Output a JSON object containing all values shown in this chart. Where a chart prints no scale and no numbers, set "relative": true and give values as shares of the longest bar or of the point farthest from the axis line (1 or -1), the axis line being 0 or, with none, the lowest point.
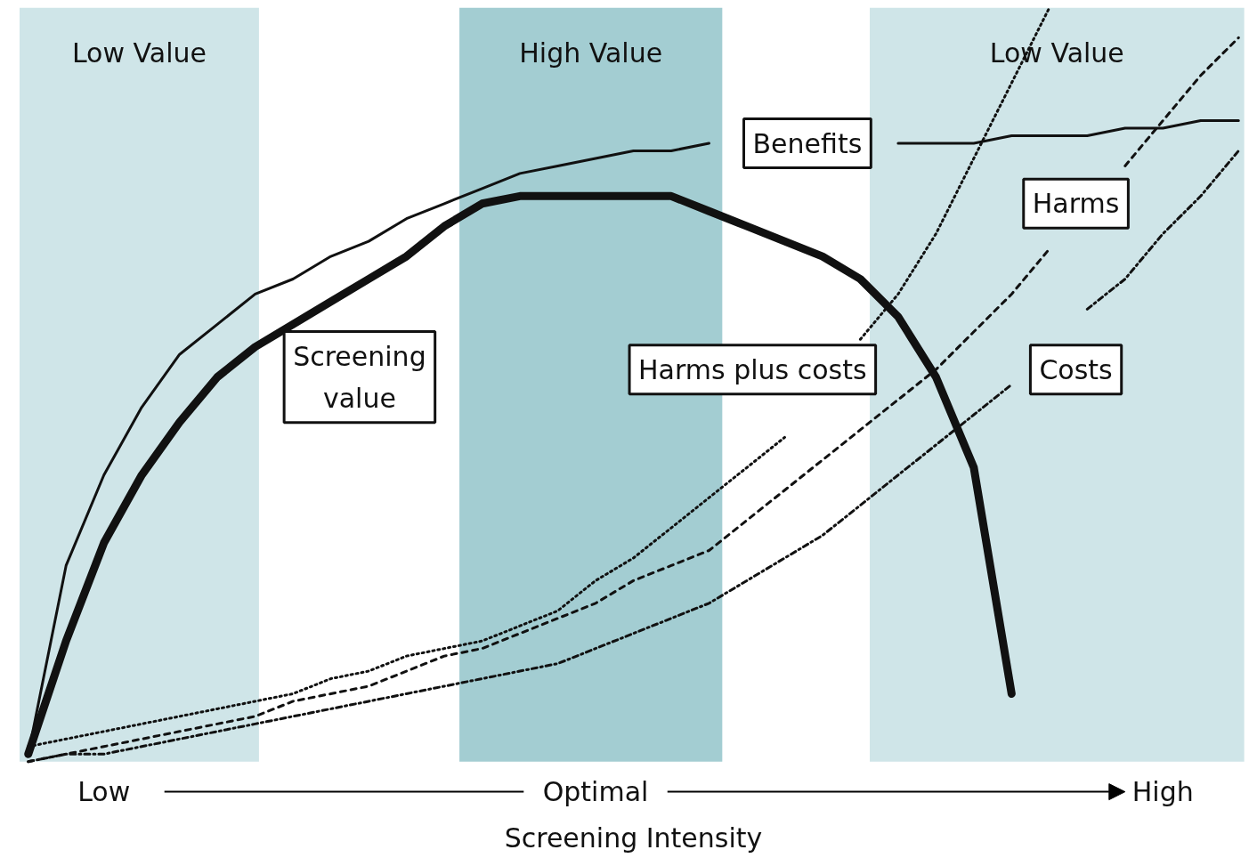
{
  "chart_data": {
    "type": "line",
    "relative": true,
    "xlabel": "Screening Intensity",
    "categories": [
      null,
      null,
      "Low",
      null,
      null,
      null,
      null,
      null,
      null,
      null,
      null,
      null,
      null,
      null,
      null,
      "Optimal",
      null,
      null,
      null,
      null,
      null,
      null,
      null,
      null,
      null,
      null,
      null,
      null,
      null,
      null,
      "High",
      null,
      null
    ],
    "grid": false,
    "annotations": [
      "Low Value",
      "High Value",
      "Low Value"
    ],
    "series": [
      {
        "name": "Benefits",
        "color": "#111111",
        "line_style": "solid",
        "values": [
          0.01,
          0.26,
          0.38,
          0.47,
          0.54,
          0.58,
          0.62,
          0.64,
          0.67,
          0.69,
          0.72,
          0.74,
          0.76,
          0.78,
          0.79,
          0.8,
          0.81,
          0.81,
          0.82,
          null,
          null,
          null,
          null,
          0.82,
          0.82,
          0.82,
          0.83,
          0.83,
          0.83,
          0.84,
          0.84,
          0.85,
          0.85
        ]
      },
      {
        "name": "Screening value",
        "color": "#111111",
        "line_style": "solid",
        "values": [
          0.01,
          0.16,
          0.29,
          0.38,
          0.45,
          0.51,
          0.55,
          0.58,
          0.61,
          0.64,
          0.67,
          0.71,
          0.74,
          0.75,
          0.75,
          0.75,
          0.75,
          0.75,
          0.73,
          0.71,
          0.69,
          0.67,
          0.64,
          0.59,
          0.51,
          0.39,
          0.09,
          null,
          null,
          null,
          null,
          null,
          null
        ]
      },
      {
        "name": "Harms plus costs",
        "color": "#111111",
        "line_style": "dotted",
        "values": [
          0.02,
          0.03,
          0.04,
          0.05,
          0.06,
          0.07,
          0.08,
          0.09,
          0.11,
          0.12,
          0.14,
          0.15,
          0.16,
          0.18,
          0.2,
          0.24,
          0.27,
          0.31,
          0.35,
          0.39,
          0.43,
          null,
          0.56,
          0.62,
          0.7,
          0.8,
          0.9,
          1.0,
          null,
          null,
          null,
          null,
          null
        ]
      },
      {
        "name": "Harms",
        "color": "#111111",
        "line_style": "dashed",
        "values": [
          0.0,
          0.01,
          0.02,
          0.03,
          0.04,
          0.05,
          0.06,
          0.08,
          0.09,
          0.1,
          0.12,
          0.14,
          0.15,
          0.17,
          0.19,
          0.21,
          0.24,
          0.26,
          0.28,
          0.32,
          0.36,
          0.4,
          0.44,
          0.48,
          0.52,
          0.57,
          0.62,
          0.68,
          null,
          0.79,
          0.85,
          0.91,
          0.96
        ]
      },
      {
        "name": "Costs",
        "color": "#111111",
        "line_style": "dashdot",
        "values": [
          0.0,
          0.01,
          0.01,
          0.02,
          0.03,
          0.04,
          0.05,
          0.06,
          0.07,
          0.08,
          0.09,
          0.1,
          0.11,
          0.12,
          0.13,
          0.15,
          0.17,
          0.19,
          0.21,
          0.24,
          0.27,
          0.3,
          0.34,
          0.38,
          0.42,
          0.46,
          0.5,
          null,
          0.6,
          0.64,
          0.7,
          0.75,
          0.81
        ]
      }
    ]
  }
}
